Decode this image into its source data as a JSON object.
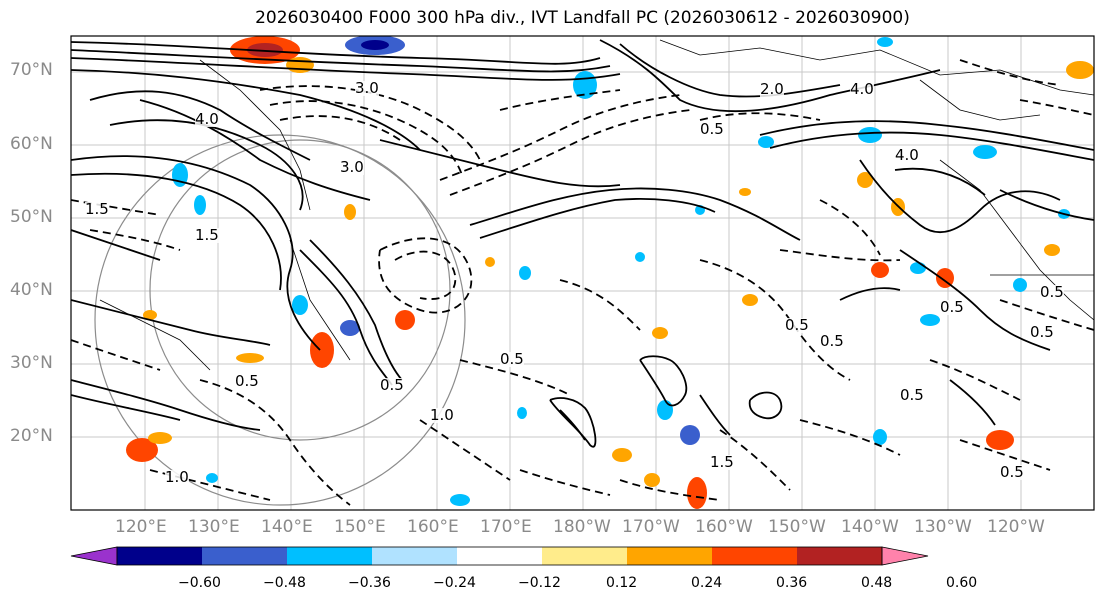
{
  "title": "2026030400 F000 300 hPa div., IVT Landfall PC (2026030612 - 2026030900)",
  "lat_labels": [
    "70°N",
    "60°N",
    "50°N",
    "40°N",
    "30°N",
    "20°N"
  ],
  "lon_labels": [
    "120°E",
    "130°E",
    "140°E",
    "150°E",
    "160°E",
    "170°E",
    "180°W",
    "170°W",
    "160°W",
    "150°W",
    "140°W",
    "130°W",
    "120°W"
  ],
  "colorbar": {
    "colors": [
      "#9a32cd",
      "#00008b",
      "#3a5fcd",
      "#00bfff",
      "#b0e2ff",
      "#ffffff",
      "#ffec8b",
      "#ffa500",
      "#ff4500",
      "#b22222",
      "#ff82ab"
    ],
    "ticks": [
      "−0.60",
      "−0.48",
      "−0.36",
      "−0.24",
      "−0.12",
      "0.12",
      "0.24",
      "0.36",
      "0.48",
      "0.60"
    ]
  },
  "contour_labels": [
    "4.0",
    "3.0",
    "2.0",
    "4.0",
    "3.0",
    "4.0",
    "1.5",
    "1.5",
    "0.5",
    "0.5",
    "0.5",
    "0.5",
    "0.5",
    "0.5",
    "0.5",
    "1.0",
    "1.5",
    "1.0",
    "0.5",
    "0.5",
    "0.5",
    "0.5"
  ]
}
